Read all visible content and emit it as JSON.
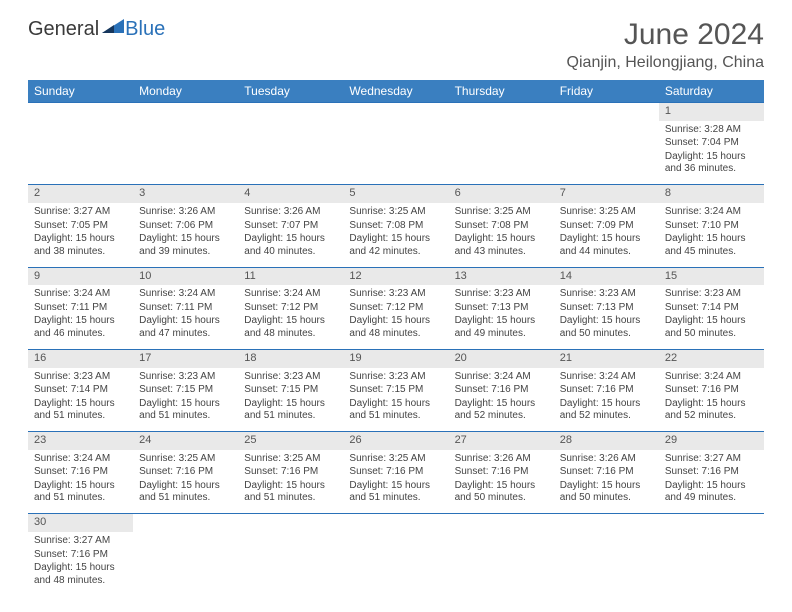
{
  "logo": {
    "part1": "General",
    "part2": "Blue",
    "triangle_color": "#2a71b8"
  },
  "title": "June 2024",
  "location": "Qianjin, Heilongjiang, China",
  "header_bg": "#3a7fc0",
  "daynum_bg": "#e9e9e9",
  "border_color": "#2a71b8",
  "weekdays": [
    "Sunday",
    "Monday",
    "Tuesday",
    "Wednesday",
    "Thursday",
    "Friday",
    "Saturday"
  ],
  "weeks": [
    [
      null,
      null,
      null,
      null,
      null,
      null,
      {
        "d": "1",
        "sr": "3:28 AM",
        "ss": "7:04 PM",
        "dl": "15 hours and 36 minutes."
      }
    ],
    [
      {
        "d": "2",
        "sr": "3:27 AM",
        "ss": "7:05 PM",
        "dl": "15 hours and 38 minutes."
      },
      {
        "d": "3",
        "sr": "3:26 AM",
        "ss": "7:06 PM",
        "dl": "15 hours and 39 minutes."
      },
      {
        "d": "4",
        "sr": "3:26 AM",
        "ss": "7:07 PM",
        "dl": "15 hours and 40 minutes."
      },
      {
        "d": "5",
        "sr": "3:25 AM",
        "ss": "7:08 PM",
        "dl": "15 hours and 42 minutes."
      },
      {
        "d": "6",
        "sr": "3:25 AM",
        "ss": "7:08 PM",
        "dl": "15 hours and 43 minutes."
      },
      {
        "d": "7",
        "sr": "3:25 AM",
        "ss": "7:09 PM",
        "dl": "15 hours and 44 minutes."
      },
      {
        "d": "8",
        "sr": "3:24 AM",
        "ss": "7:10 PM",
        "dl": "15 hours and 45 minutes."
      }
    ],
    [
      {
        "d": "9",
        "sr": "3:24 AM",
        "ss": "7:11 PM",
        "dl": "15 hours and 46 minutes."
      },
      {
        "d": "10",
        "sr": "3:24 AM",
        "ss": "7:11 PM",
        "dl": "15 hours and 47 minutes."
      },
      {
        "d": "11",
        "sr": "3:24 AM",
        "ss": "7:12 PM",
        "dl": "15 hours and 48 minutes."
      },
      {
        "d": "12",
        "sr": "3:23 AM",
        "ss": "7:12 PM",
        "dl": "15 hours and 48 minutes."
      },
      {
        "d": "13",
        "sr": "3:23 AM",
        "ss": "7:13 PM",
        "dl": "15 hours and 49 minutes."
      },
      {
        "d": "14",
        "sr": "3:23 AM",
        "ss": "7:13 PM",
        "dl": "15 hours and 50 minutes."
      },
      {
        "d": "15",
        "sr": "3:23 AM",
        "ss": "7:14 PM",
        "dl": "15 hours and 50 minutes."
      }
    ],
    [
      {
        "d": "16",
        "sr": "3:23 AM",
        "ss": "7:14 PM",
        "dl": "15 hours and 51 minutes."
      },
      {
        "d": "17",
        "sr": "3:23 AM",
        "ss": "7:15 PM",
        "dl": "15 hours and 51 minutes."
      },
      {
        "d": "18",
        "sr": "3:23 AM",
        "ss": "7:15 PM",
        "dl": "15 hours and 51 minutes."
      },
      {
        "d": "19",
        "sr": "3:23 AM",
        "ss": "7:15 PM",
        "dl": "15 hours and 51 minutes."
      },
      {
        "d": "20",
        "sr": "3:24 AM",
        "ss": "7:16 PM",
        "dl": "15 hours and 52 minutes."
      },
      {
        "d": "21",
        "sr": "3:24 AM",
        "ss": "7:16 PM",
        "dl": "15 hours and 52 minutes."
      },
      {
        "d": "22",
        "sr": "3:24 AM",
        "ss": "7:16 PM",
        "dl": "15 hours and 52 minutes."
      }
    ],
    [
      {
        "d": "23",
        "sr": "3:24 AM",
        "ss": "7:16 PM",
        "dl": "15 hours and 51 minutes."
      },
      {
        "d": "24",
        "sr": "3:25 AM",
        "ss": "7:16 PM",
        "dl": "15 hours and 51 minutes."
      },
      {
        "d": "25",
        "sr": "3:25 AM",
        "ss": "7:16 PM",
        "dl": "15 hours and 51 minutes."
      },
      {
        "d": "26",
        "sr": "3:25 AM",
        "ss": "7:16 PM",
        "dl": "15 hours and 51 minutes."
      },
      {
        "d": "27",
        "sr": "3:26 AM",
        "ss": "7:16 PM",
        "dl": "15 hours and 50 minutes."
      },
      {
        "d": "28",
        "sr": "3:26 AM",
        "ss": "7:16 PM",
        "dl": "15 hours and 50 minutes."
      },
      {
        "d": "29",
        "sr": "3:27 AM",
        "ss": "7:16 PM",
        "dl": "15 hours and 49 minutes."
      }
    ],
    [
      {
        "d": "30",
        "sr": "3:27 AM",
        "ss": "7:16 PM",
        "dl": "15 hours and 48 minutes."
      },
      null,
      null,
      null,
      null,
      null,
      null
    ]
  ],
  "labels": {
    "sunrise": "Sunrise:",
    "sunset": "Sunset:",
    "daylight": "Daylight:"
  }
}
